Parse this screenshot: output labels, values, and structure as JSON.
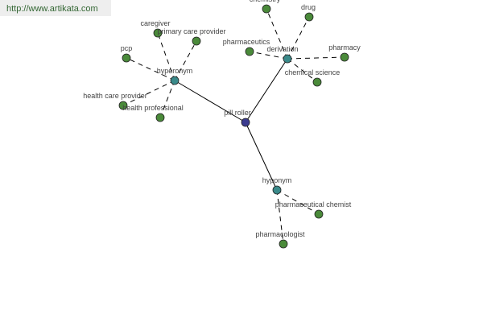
{
  "site_url": "http://www.artikata.com",
  "colors": {
    "center": "#3b3b8f",
    "relation": "#3a8a8a",
    "leaf": "#4a8a3a"
  },
  "graph": {
    "center": "pill roller",
    "relations": [
      {
        "label": "hyperonym",
        "words": [
          "caregiver",
          "primary care provider",
          "pcp",
          "health care provider",
          "health professional"
        ]
      },
      {
        "label": "derivation",
        "words": [
          "chemistry",
          "drug",
          "pharmaceutics",
          "pharmacy",
          "chemical science"
        ]
      },
      {
        "label": "hyponym",
        "words": [
          "pharmaceutical chemist",
          "pharmacologist"
        ]
      }
    ]
  }
}
